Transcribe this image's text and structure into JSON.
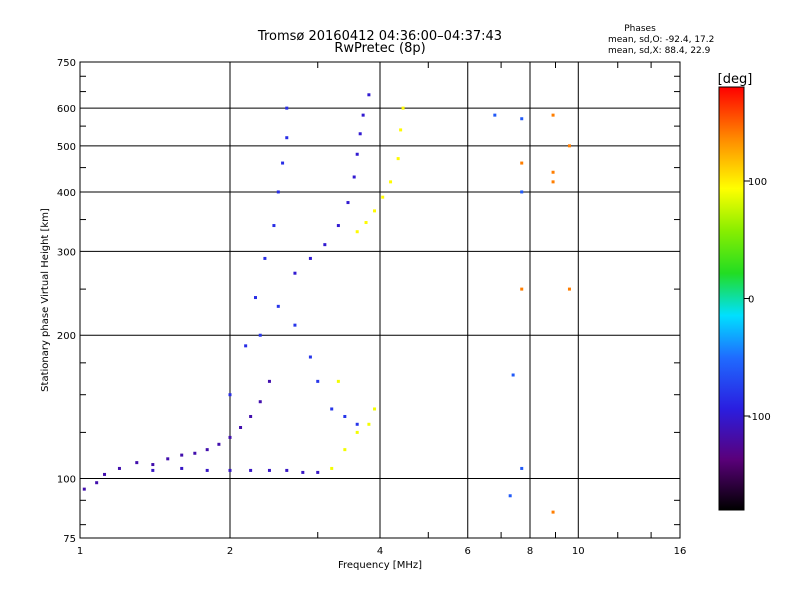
{
  "chart_data": {
    "type": "scatter",
    "title": "Tromsø 20160412 04:36:00–04:37:43",
    "subtitle": "RwPretec (8p)",
    "xlabel": "Frequency [MHz]",
    "ylabel": "Stationary phase Virtual Height [km]",
    "x_scale": "log2",
    "y_scale": "log",
    "xlim": [
      1,
      16
    ],
    "ylim": [
      75,
      750
    ],
    "x_ticks": [
      1,
      2,
      4,
      6,
      8,
      10,
      16
    ],
    "x_tick_labels": [
      "1",
      "2",
      "4",
      "6",
      "8",
      "10",
      "16"
    ],
    "y_ticks": [
      75,
      100,
      200,
      300,
      400,
      500,
      600,
      750
    ],
    "y_tick_labels": [
      "75",
      "100",
      "200",
      "300",
      "400",
      "500",
      "600",
      "750"
    ],
    "grid": true,
    "stats": {
      "heading": "Phases",
      "o_line": "mean, sd,O:  -92.4, 17.2",
      "x_line": "mean, sd,X:  88.4, 22.9"
    },
    "colorbar": {
      "label": "[deg]",
      "range": [
        -180,
        180
      ],
      "ticks": [
        100,
        0,
        -100
      ],
      "tick_labels": [
        "100",
        "0",
        "-100"
      ]
    },
    "series": [
      {
        "name": "trace-low-f-tail",
        "phase": -115,
        "points": [
          [
            1.02,
            95
          ],
          [
            1.08,
            98
          ],
          [
            1.12,
            102
          ],
          [
            1.2,
            105
          ],
          [
            1.3,
            108
          ],
          [
            1.4,
            107
          ],
          [
            1.5,
            110
          ],
          [
            1.6,
            112
          ],
          [
            1.7,
            113
          ],
          [
            1.8,
            115
          ],
          [
            1.9,
            118
          ],
          [
            2.0,
            122
          ],
          [
            2.1,
            128
          ],
          [
            2.2,
            135
          ],
          [
            2.3,
            145
          ],
          [
            2.4,
            160
          ]
        ]
      },
      {
        "name": "trace-100km-layer",
        "phase": -105,
        "points": [
          [
            1.4,
            104
          ],
          [
            1.6,
            105
          ],
          [
            1.8,
            104
          ],
          [
            2.0,
            104
          ],
          [
            2.2,
            104
          ],
          [
            2.4,
            104
          ],
          [
            2.6,
            104
          ],
          [
            2.8,
            103
          ],
          [
            3.0,
            103
          ]
        ]
      },
      {
        "name": "trace-F-cusp",
        "phase": -85,
        "points": [
          [
            2.0,
            150
          ],
          [
            2.15,
            190
          ],
          [
            2.25,
            240
          ],
          [
            2.35,
            290
          ],
          [
            2.45,
            340
          ],
          [
            2.5,
            400
          ],
          [
            2.55,
            460
          ],
          [
            2.6,
            520
          ],
          [
            2.6,
            600
          ]
        ]
      },
      {
        "name": "trace-F-body",
        "phase": -80,
        "points": [
          [
            2.3,
            200
          ],
          [
            2.5,
            230
          ],
          [
            2.7,
            210
          ],
          [
            2.9,
            180
          ],
          [
            3.0,
            160
          ],
          [
            3.2,
            140
          ],
          [
            3.4,
            135
          ],
          [
            3.6,
            130
          ]
        ]
      },
      {
        "name": "trace-O-mode-arc",
        "phase": -100,
        "points": [
          [
            2.7,
            270
          ],
          [
            2.9,
            290
          ],
          [
            3.1,
            310
          ],
          [
            3.3,
            340
          ],
          [
            3.45,
            380
          ],
          [
            3.55,
            430
          ],
          [
            3.6,
            480
          ],
          [
            3.65,
            530
          ],
          [
            3.7,
            580
          ],
          [
            3.8,
            640
          ]
        ]
      },
      {
        "name": "trace-X-mode-arc",
        "phase": 95,
        "points": [
          [
            3.6,
            330
          ],
          [
            3.75,
            345
          ],
          [
            3.9,
            365
          ],
          [
            4.05,
            390
          ],
          [
            4.2,
            420
          ],
          [
            4.35,
            470
          ],
          [
            4.4,
            540
          ],
          [
            4.45,
            600
          ]
        ]
      },
      {
        "name": "trace-X-low",
        "phase": 90,
        "points": [
          [
            3.2,
            105
          ],
          [
            3.4,
            115
          ],
          [
            3.6,
            125
          ],
          [
            3.8,
            130
          ],
          [
            3.9,
            140
          ],
          [
            3.3,
            160
          ]
        ]
      },
      {
        "name": "scatter-high-f",
        "phase": -60,
        "points": [
          [
            6.8,
            580
          ],
          [
            7.7,
            570
          ],
          [
            7.7,
            400
          ],
          [
            7.4,
            165
          ],
          [
            7.7,
            105
          ],
          [
            7.3,
            92
          ]
        ]
      },
      {
        "name": "scatter-high-f-x",
        "phase": 140,
        "points": [
          [
            7.7,
            460
          ],
          [
            7.7,
            250
          ],
          [
            8.9,
            440
          ],
          [
            8.9,
            420
          ],
          [
            9.6,
            250
          ],
          [
            9.6,
            500
          ],
          [
            8.9,
            580
          ],
          [
            8.9,
            85
          ]
        ]
      }
    ]
  }
}
